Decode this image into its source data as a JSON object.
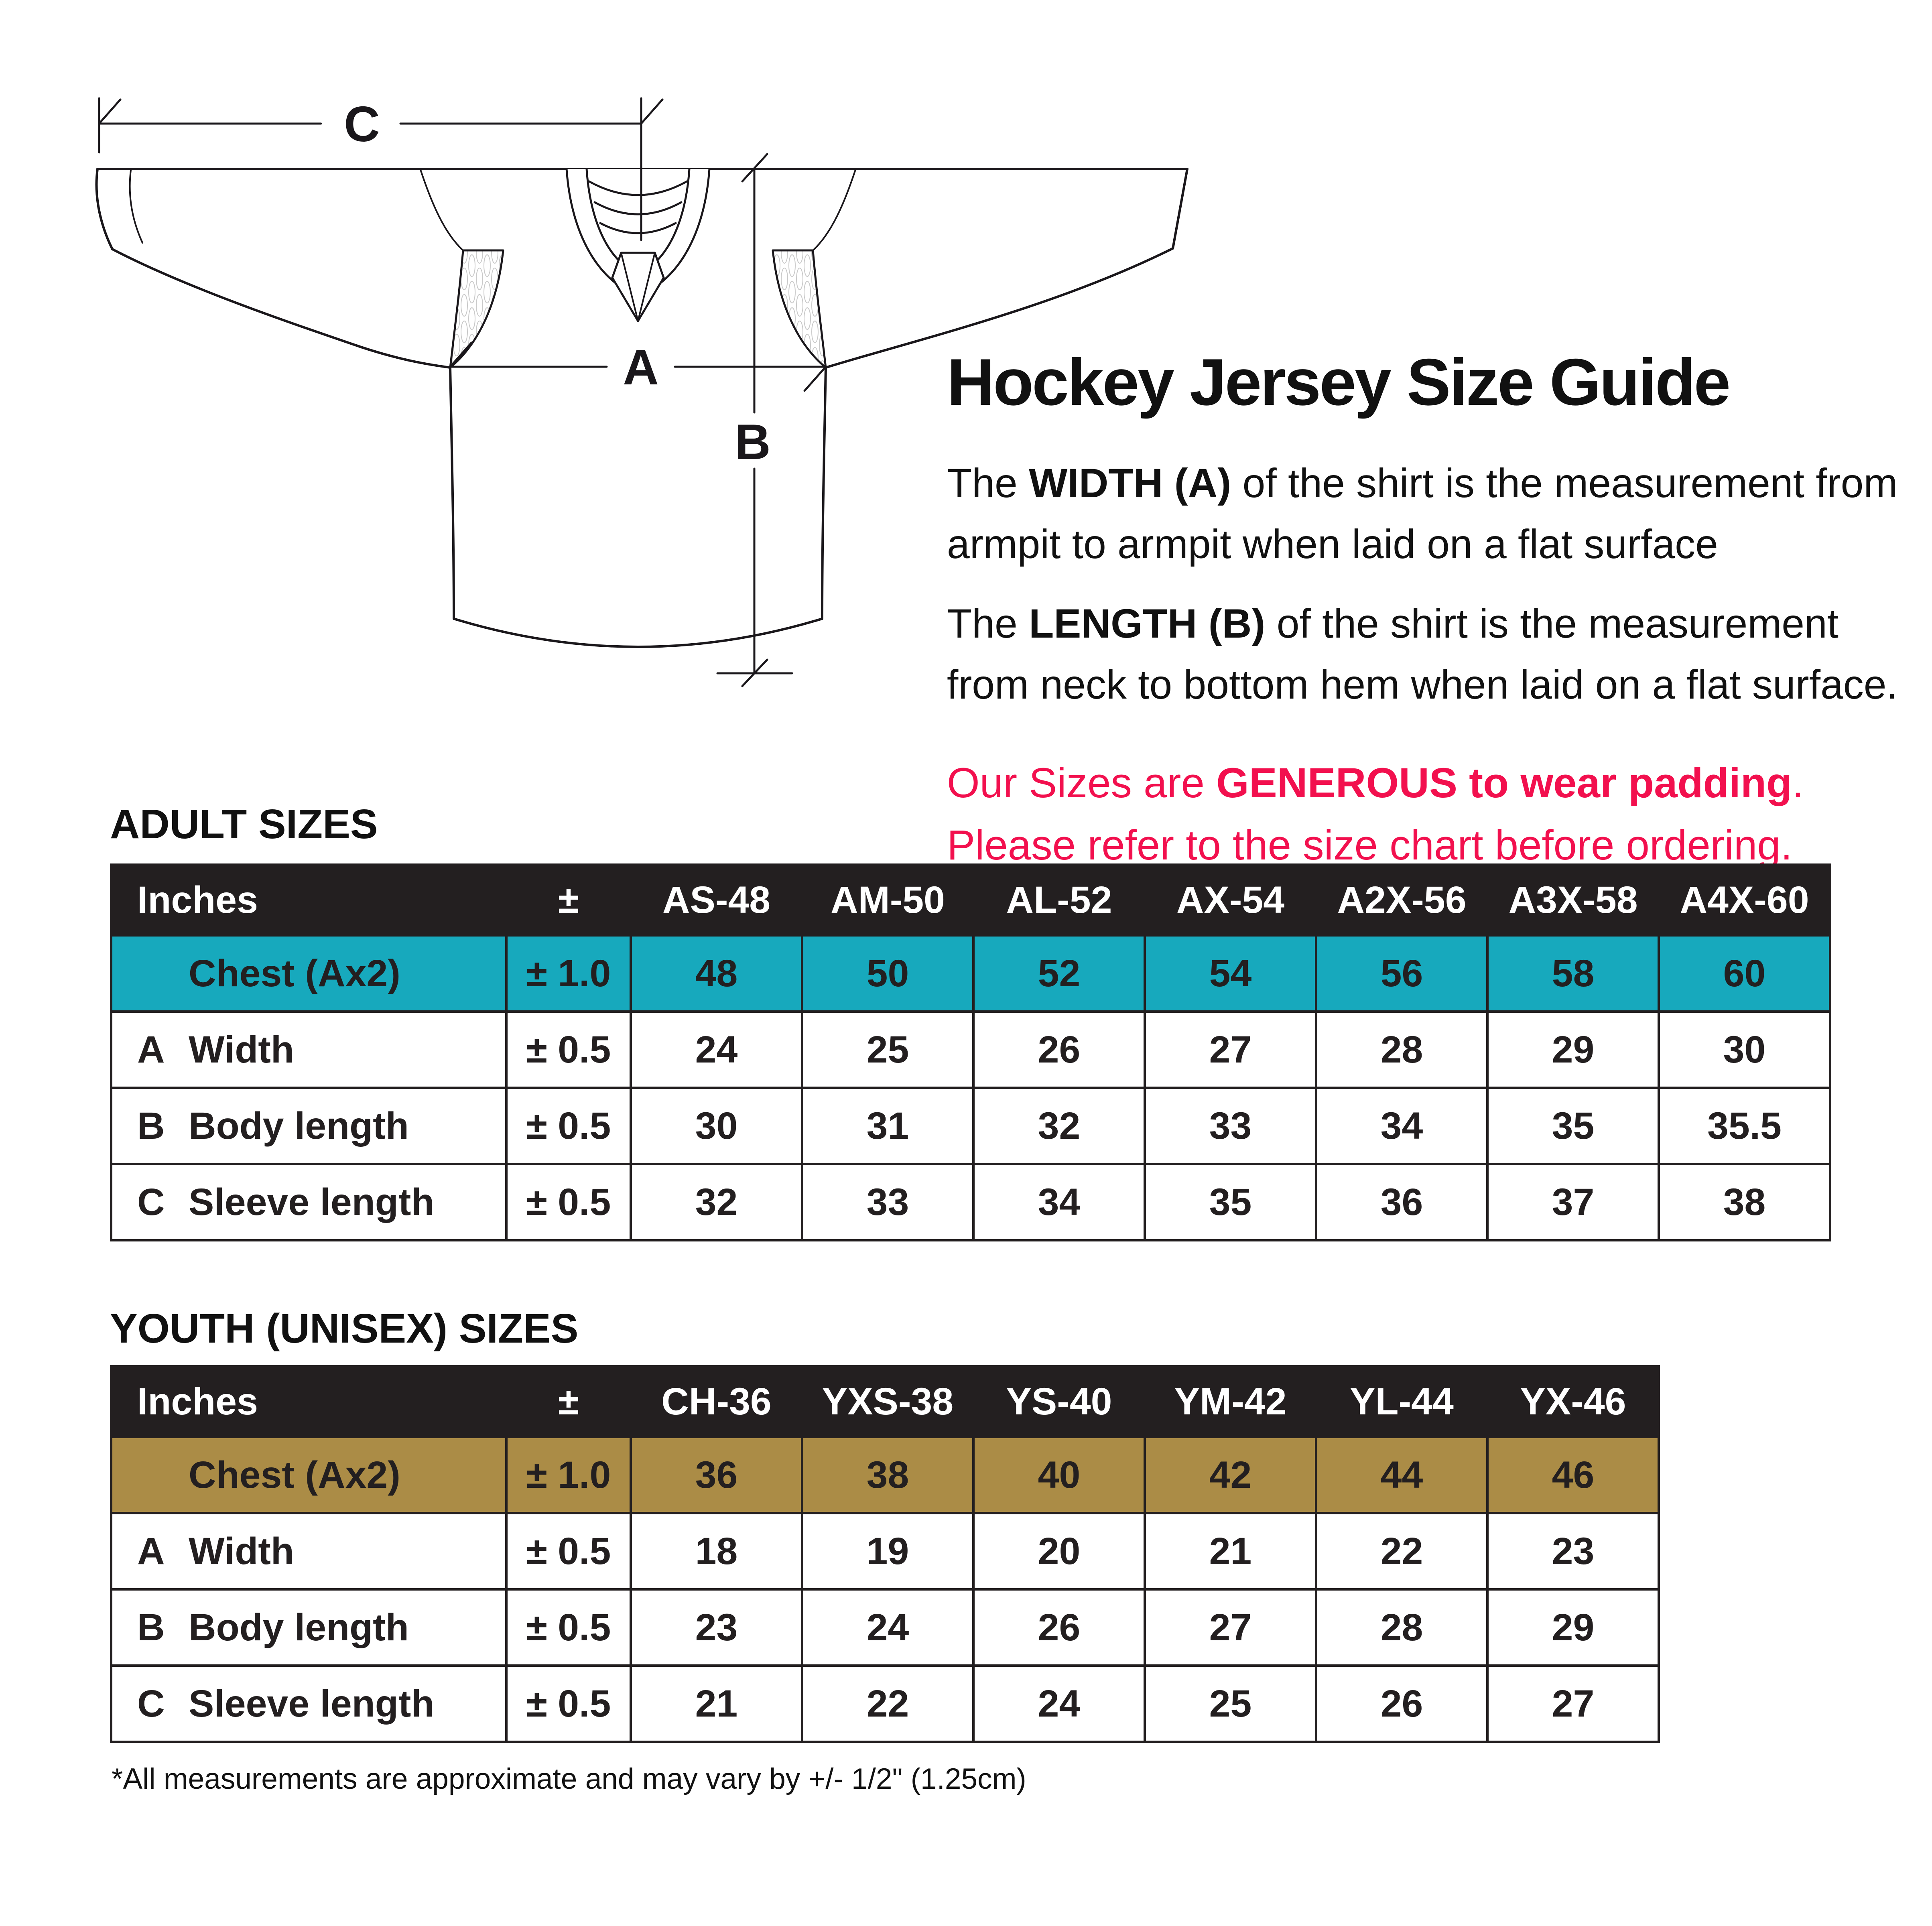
{
  "diagram": {
    "labels": {
      "width": "A",
      "length": "B",
      "sleeve": "C"
    }
  },
  "intro": {
    "title": "Hockey Jersey Size Guide",
    "width_para": {
      "l1_pre": "The ",
      "l1_bold": "WIDTH (A)",
      "l1_post": " of the shirt is the measurement from",
      "l2": "armpit to armpit when laid on a flat surface"
    },
    "length_para": {
      "l1_pre": "The ",
      "l1_bold": "LENGTH (B)",
      "l1_post": " of the shirt is the measurement",
      "l2": "from neck to bottom hem when laid on a flat surface."
    },
    "notice": {
      "color": "#F2104E",
      "l1_pre": "Our Sizes are ",
      "l1_bold": "GENEROUS to wear padding",
      "l1_post": ".",
      "l2": "Please refer to the size chart before ordering."
    }
  },
  "adult": {
    "heading": "ADULT SIZES",
    "table": {
      "unit_header": "Inches",
      "tolerance_header": "±",
      "highlight_color": "#17A9BD",
      "columns": [
        "AS-48",
        "AM-50",
        "AL-52",
        "AX-54",
        "A2X-56",
        "A3X-58",
        "A4X-60"
      ],
      "rows": [
        {
          "key": "",
          "label": "Chest (Ax2)",
          "tolerance": "± 1.0",
          "highlight": true,
          "values": [
            "48",
            "50",
            "52",
            "54",
            "56",
            "58",
            "60"
          ]
        },
        {
          "key": "A",
          "label": "Width",
          "tolerance": "± 0.5",
          "highlight": false,
          "values": [
            "24",
            "25",
            "26",
            "27",
            "28",
            "29",
            "30"
          ]
        },
        {
          "key": "B",
          "label": "Body length",
          "tolerance": "± 0.5",
          "highlight": false,
          "values": [
            "30",
            "31",
            "32",
            "33",
            "34",
            "35",
            "35.5"
          ]
        },
        {
          "key": "C",
          "label": "Sleeve length",
          "tolerance": "± 0.5",
          "highlight": false,
          "values": [
            "32",
            "33",
            "34",
            "35",
            "36",
            "37",
            "38"
          ]
        }
      ]
    }
  },
  "youth": {
    "heading": "YOUTH (UNISEX) SIZES",
    "table": {
      "unit_header": "Inches",
      "tolerance_header": "±",
      "highlight_color": "#AB8C46",
      "columns": [
        "CH-36",
        "YXS-38",
        "YS-40",
        "YM-42",
        "YL-44",
        "YX-46"
      ],
      "rows": [
        {
          "key": "",
          "label": "Chest (Ax2)",
          "tolerance": "± 1.0",
          "highlight": true,
          "values": [
            "36",
            "38",
            "40",
            "42",
            "44",
            "46"
          ]
        },
        {
          "key": "A",
          "label": "Width",
          "tolerance": "± 0.5",
          "highlight": false,
          "values": [
            "18",
            "19",
            "20",
            "21",
            "22",
            "23"
          ]
        },
        {
          "key": "B",
          "label": "Body length",
          "tolerance": "± 0.5",
          "highlight": false,
          "values": [
            "23",
            "24",
            "26",
            "27",
            "28",
            "29"
          ]
        },
        {
          "key": "C",
          "label": "Sleeve length",
          "tolerance": "± 0.5",
          "highlight": false,
          "values": [
            "21",
            "22",
            "24",
            "25",
            "26",
            "27"
          ]
        }
      ]
    }
  },
  "footnote": "*All measurements are approximate and may vary by +/- 1/2\" (1.25cm)",
  "colors": {
    "table_header_bg": "#231F20",
    "table_border": "#231F20",
    "adult_highlight": "#17A9BD",
    "youth_highlight": "#AB8C46",
    "notice_text": "#F2104E",
    "line_art": "#1A171B"
  }
}
